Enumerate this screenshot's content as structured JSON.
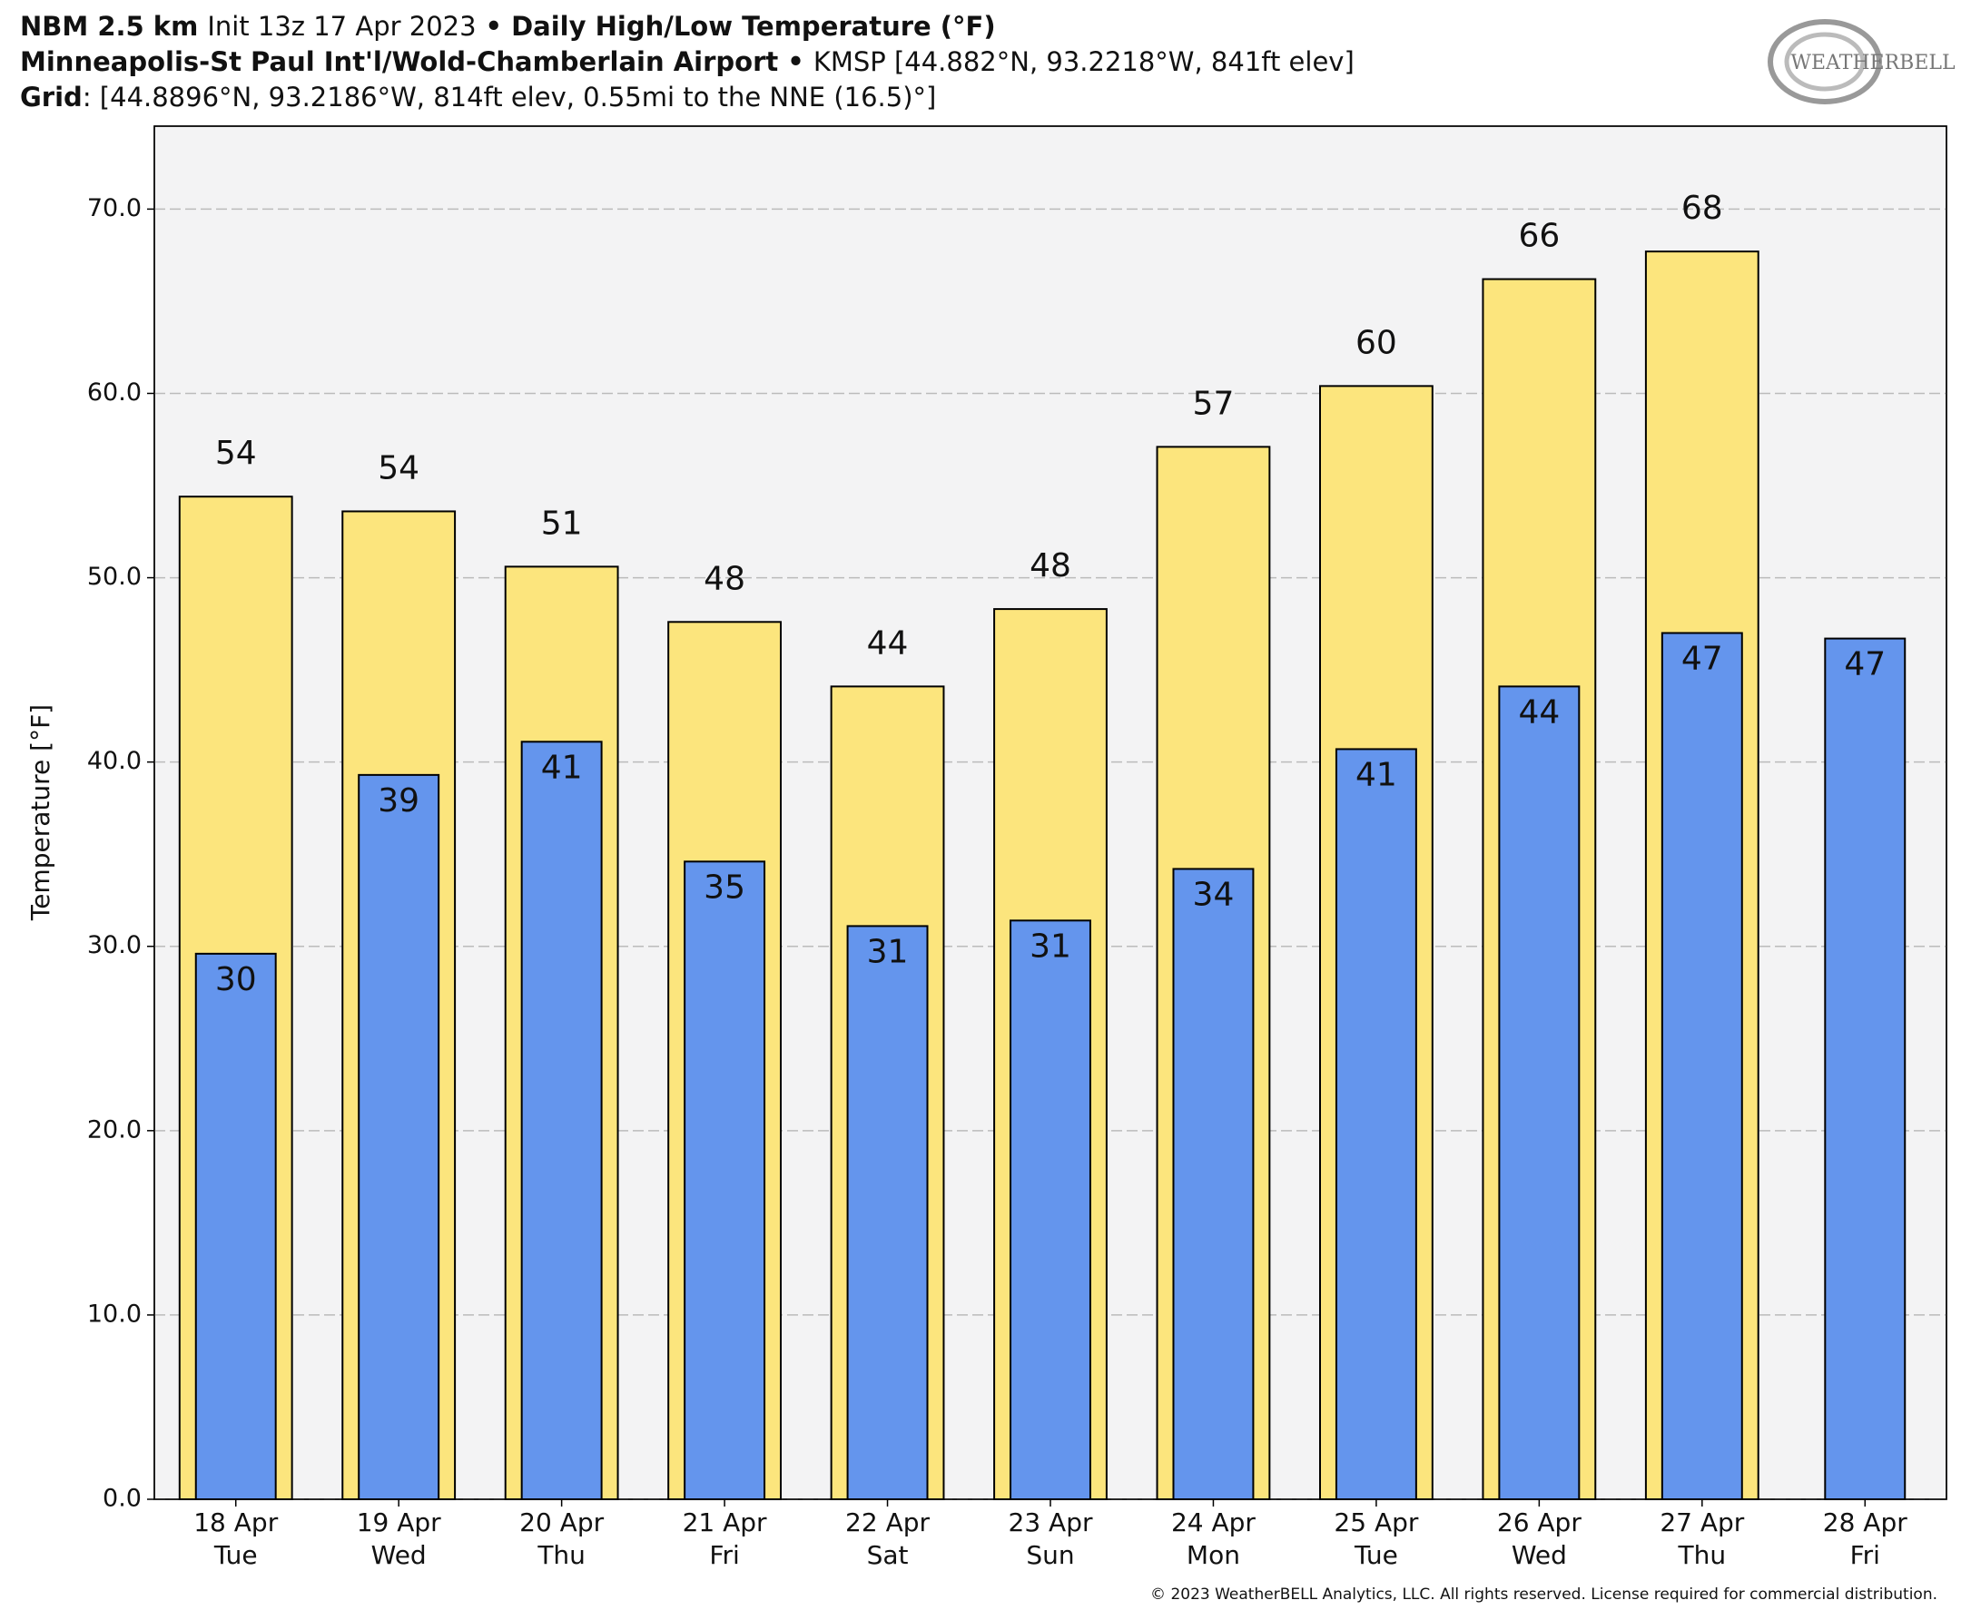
{
  "chart_data": {
    "type": "bar",
    "header": [
      [
        {
          "text": "NBM 2.5 km",
          "bold": true
        },
        {
          "text": "Init 13z 17 Apr 2023",
          "bold": false
        },
        {
          "text": "•",
          "bold": true
        },
        {
          "text": "Daily High/Low Temperature (°F)",
          "bold": true
        }
      ],
      [
        {
          "text": "Minneapolis-St Paul Int'l/Wold-Chamberlain Airport",
          "bold": true
        },
        {
          "text": "•",
          "bold": true
        },
        {
          "text": "KMSP [44.882°N, 93.2218°W, 841ft elev]",
          "bold": false
        }
      ],
      [
        {
          "text": "Grid",
          "bold": true
        },
        {
          "text": ": [44.8896°N, 93.2186°W, 814ft elev, 0.55mi to the NNE (16.5)°]",
          "bold": false
        }
      ]
    ],
    "logo": "WEATHERBELL",
    "footer": "© 2023 WeatherBELL Analytics, LLC. All rights reserved. License required for commercial distribution.",
    "y_label": "Temperature [°F]",
    "categories": [
      "18 Apr",
      "19 Apr",
      "20 Apr",
      "21 Apr",
      "22 Apr",
      "23 Apr",
      "24 Apr",
      "25 Apr",
      "26 Apr",
      "27 Apr",
      "28 Apr"
    ],
    "weekdays": [
      "Tue",
      "Wed",
      "Thu",
      "Fri",
      "Sat",
      "Sun",
      "Mon",
      "Tue",
      "Wed",
      "Thu",
      "Fri"
    ],
    "series": [
      {
        "name": "High",
        "color": "#fce57d",
        "values": [
          54.4,
          53.6,
          50.6,
          47.6,
          44.1,
          48.3,
          57.1,
          60.4,
          66.2,
          67.7,
          null
        ],
        "value_labels": [
          "54",
          "54",
          "51",
          "48",
          "44",
          "48",
          "57",
          "60",
          "66",
          "68",
          null
        ]
      },
      {
        "name": "Low",
        "color": "#6495ed",
        "values": [
          29.6,
          39.3,
          41.1,
          34.6,
          31.1,
          31.4,
          34.2,
          40.7,
          44.1,
          47.0,
          46.7
        ],
        "value_labels": [
          "30",
          "39",
          "41",
          "35",
          "31",
          "31",
          "34",
          "41",
          "44",
          "47",
          "47"
        ]
      }
    ],
    "ylim": [
      0,
      74.5
    ],
    "yticks": [
      {
        "value": 0,
        "label": "0.0"
      },
      {
        "value": 10,
        "label": "10.0"
      },
      {
        "value": 20,
        "label": "20.0"
      },
      {
        "value": 30,
        "label": "30.0"
      },
      {
        "value": 40,
        "label": "40.0"
      },
      {
        "value": 50,
        "label": "50.0"
      },
      {
        "value": 60,
        "label": "60.0"
      },
      {
        "value": 70,
        "label": "70.0"
      }
    ],
    "grid": true
  }
}
